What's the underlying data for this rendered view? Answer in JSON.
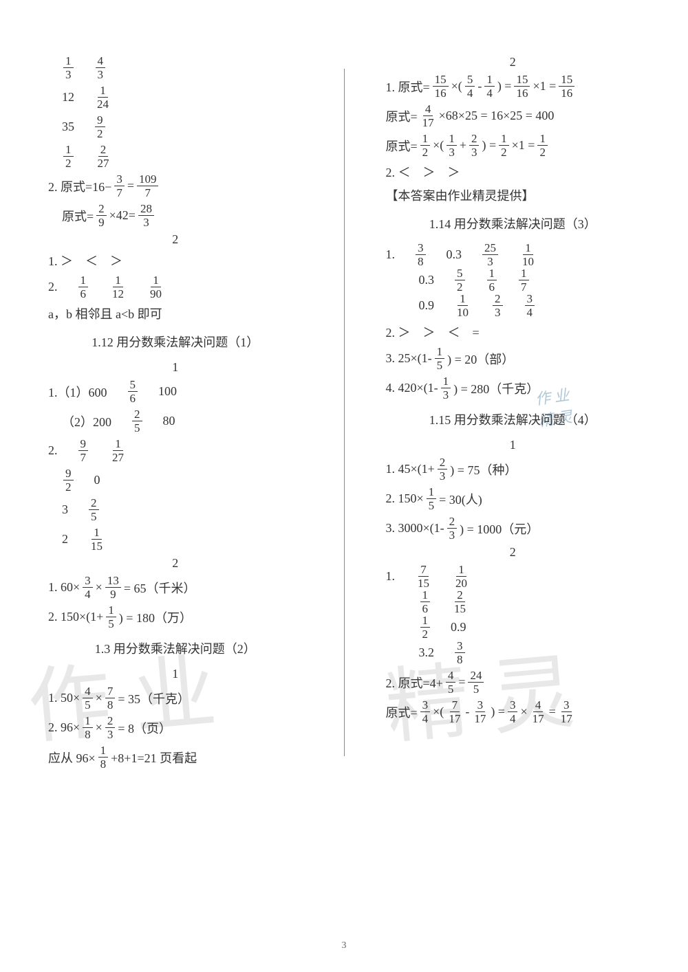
{
  "left": {
    "row1a": {
      "a": {
        "n": "1",
        "d": "3"
      },
      "b": {
        "n": "4",
        "d": "3"
      }
    },
    "row1b": {
      "a": "12",
      "b": {
        "n": "1",
        "d": "24"
      }
    },
    "row1c": {
      "a": "35",
      "b": {
        "n": "9",
        "d": "2"
      }
    },
    "row1d": {
      "a": {
        "n": "1",
        "d": "2"
      },
      "b": {
        "n": "2",
        "d": "27"
      }
    },
    "eq2a_label": "2. 原式=16−",
    "eq2a_f": {
      "n": "3",
      "d": "7"
    },
    "eq2a_eq": "=",
    "eq2a_r": {
      "n": "109",
      "d": "7"
    },
    "eq2b_label": "原式=",
    "eq2b_f1": {
      "n": "2",
      "d": "9"
    },
    "eq2b_mid": "×42=",
    "eq2b_r": {
      "n": "28",
      "d": "3"
    },
    "sub2": "2",
    "cmp1": "1. ＞　＜　＞",
    "frow_label": "2.",
    "frow": {
      "a": {
        "n": "1",
        "d": "6"
      },
      "b": {
        "n": "1",
        "d": "12"
      },
      "c": {
        "n": "1",
        "d": "90"
      }
    },
    "ab_note": "a，b 相邻且 a<b 即可",
    "sec112": "1.12 用分数乘法解决问题（1）",
    "sub1a": "1",
    "p1_1_label": "1.（1）600",
    "p1_1_f": {
      "n": "5",
      "d": "6"
    },
    "p1_1_r": "100",
    "p1_2_label": "（2）200",
    "p1_2_f": {
      "n": "2",
      "d": "5"
    },
    "p1_2_r": "80",
    "g2a": {
      "lbl": "2.",
      "a": {
        "n": "9",
        "d": "7"
      },
      "b": {
        "n": "1",
        "d": "27"
      }
    },
    "g2b": {
      "a": {
        "n": "9",
        "d": "2"
      },
      "b": "0"
    },
    "g2c": {
      "a": "3",
      "b": {
        "n": "2",
        "d": "5"
      }
    },
    "g2d": {
      "a": "2",
      "b": {
        "n": "1",
        "d": "15"
      }
    },
    "sub2b": "2",
    "km_label": "1. 60×",
    "km_f1": {
      "n": "3",
      "d": "4"
    },
    "km_x": "×",
    "km_f2": {
      "n": "13",
      "d": "9"
    },
    "km_r": "= 65（千米）",
    "wan_label": "2. 150×(1+",
    "wan_f": {
      "n": "1",
      "d": "5"
    },
    "wan_r": ") = 180（万）",
    "sec113": "1.3 用分数乘法解决问题（2）",
    "sub1b": "1",
    "kg_label": "1. 50×",
    "kg_f1": {
      "n": "4",
      "d": "5"
    },
    "kg_x": "×",
    "kg_f2": {
      "n": "7",
      "d": "8"
    },
    "kg_r": "= 35（千克）",
    "pg_label": "2. 96×",
    "pg_f1": {
      "n": "1",
      "d": "8"
    },
    "pg_x": "×",
    "pg_f2": {
      "n": "2",
      "d": "3"
    },
    "pg_r": "= 8（页）",
    "pg2_label": "应从 96×",
    "pg2_f": {
      "n": "1",
      "d": "8"
    },
    "pg2_r": "+8+1=21 页看起"
  },
  "right": {
    "sub2top": "2",
    "r1a_label": "1. 原式=",
    "r1a_f1": {
      "n": "15",
      "d": "16"
    },
    "r1a_m1": "×(",
    "r1a_f2": {
      "n": "5",
      "d": "4"
    },
    "r1a_m2": "-",
    "r1a_f3": {
      "n": "1",
      "d": "4"
    },
    "r1a_m3": ") =",
    "r1a_f4": {
      "n": "15",
      "d": "16"
    },
    "r1a_m4": "×1 =",
    "r1a_f5": {
      "n": "15",
      "d": "16"
    },
    "r1b_label": "原式=",
    "r1b_f": {
      "n": "4",
      "d": "17"
    },
    "r1b_r": "×68×25 = 16×25 = 400",
    "r1c_label": "原式=",
    "r1c_f1": {
      "n": "1",
      "d": "2"
    },
    "r1c_m1": "×(",
    "r1c_f2": {
      "n": "1",
      "d": "3"
    },
    "r1c_m2": "+",
    "r1c_f3": {
      "n": "2",
      "d": "3"
    },
    "r1c_m3": ") =",
    "r1c_f4": {
      "n": "1",
      "d": "2"
    },
    "r1c_m4": "×1 =",
    "r1c_f5": {
      "n": "1",
      "d": "2"
    },
    "cmp2": "2. ＜　＞　＞",
    "credit": "【本答案由作业精灵提供】",
    "sec114": "1.14 用分数乘法解决问题（3）",
    "grid1": {
      "r1": [
        "1.",
        {
          "n": "3",
          "d": "8"
        },
        "0.3",
        {
          "n": "25",
          "d": "3"
        },
        {
          "n": "1",
          "d": "10"
        }
      ],
      "r2": [
        "",
        "0.3",
        {
          "n": "5",
          "d": "2"
        },
        {
          "n": "1",
          "d": "6"
        },
        {
          "n": "1",
          "d": "7"
        }
      ],
      "r3": [
        "",
        "0.9",
        {
          "n": "1",
          "d": "10"
        },
        {
          "n": "2",
          "d": "3"
        },
        {
          "n": "3",
          "d": "4"
        }
      ]
    },
    "cmp3": "2. ＞　＞　＜　=",
    "bu_label": "3. 25×(1-",
    "bu_f": {
      "n": "1",
      "d": "5"
    },
    "bu_r": ") = 20（部）",
    "qk_label": "4. 420×(1-",
    "qk_f": {
      "n": "1",
      "d": "3"
    },
    "qk_r": ") = 280（千克）",
    "sec115": "1.15 用分数乘法解决问题（4）",
    "sub1c": "1",
    "zh_label": "1. 45×(1+",
    "zh_f": {
      "n": "2",
      "d": "3"
    },
    "zh_r": ") = 75（种）",
    "ren_label": "2. 150×",
    "ren_f": {
      "n": "1",
      "d": "5"
    },
    "ren_r": "= 30(人)",
    "yuan_label": "3. 3000×(1-",
    "yuan_f": {
      "n": "2",
      "d": "3"
    },
    "yuan_r": ") = 1000（元）",
    "sub2c": "2",
    "grid2": {
      "r1": [
        "1.",
        {
          "n": "7",
          "d": "15"
        },
        {
          "n": "1",
          "d": "20"
        }
      ],
      "r2": [
        "",
        {
          "n": "1",
          "d": "6"
        },
        {
          "n": "2",
          "d": "15"
        }
      ],
      "r3": [
        "",
        {
          "n": "1",
          "d": "2"
        },
        "0.9"
      ],
      "r4": [
        "",
        "3.2",
        {
          "n": "3",
          "d": "8"
        }
      ]
    },
    "eqA_label": "2. 原式=4+",
    "eqA_f1": {
      "n": "4",
      "d": "5"
    },
    "eqA_eq": "=",
    "eqA_f2": {
      "n": "24",
      "d": "5"
    },
    "eqB_label": "原式=",
    "eqB_f1": {
      "n": "3",
      "d": "4"
    },
    "eqB_m1": "×(",
    "eqB_f2": {
      "n": "7",
      "d": "17"
    },
    "eqB_m2": "-",
    "eqB_f3": {
      "n": "3",
      "d": "17"
    },
    "eqB_m3": ") =",
    "eqB_f4": {
      "n": "3",
      "d": "4"
    },
    "eqB_m4": "×",
    "eqB_f5": {
      "n": "4",
      "d": "17"
    },
    "eqB_m5": "=",
    "eqB_f6": {
      "n": "3",
      "d": "17"
    }
  },
  "pagenum": "3",
  "wm": {
    "a": "作 业",
    "b": "精 灵",
    "small1": "作 业",
    "small2": "精 灵"
  }
}
